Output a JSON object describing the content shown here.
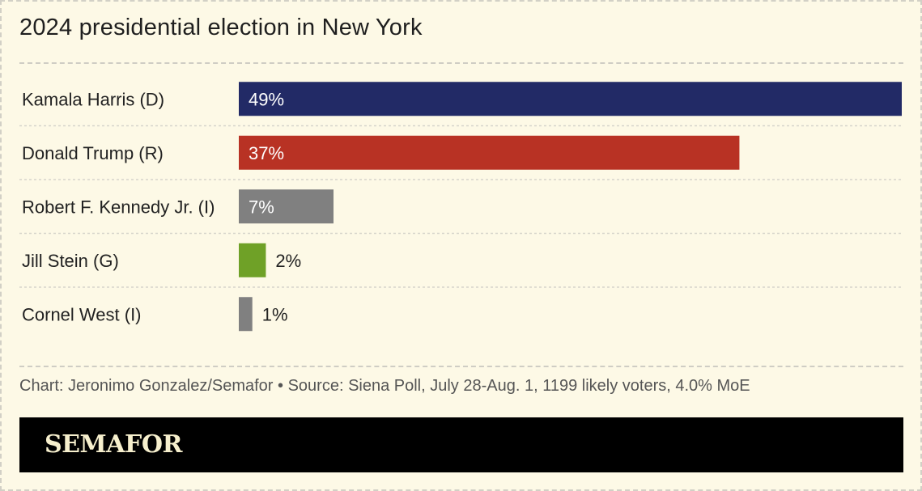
{
  "header": {
    "title": "2024 presidential election in New York"
  },
  "chart_data": {
    "type": "bar",
    "orientation": "horizontal",
    "title": "2024 presidential election in New York",
    "xlim": [
      0,
      49
    ],
    "categories": [
      "Kamala Harris (D)",
      "Donald Trump (R)",
      "Robert F. Kennedy Jr. (I)",
      "Jill Stein (G)",
      "Cornel West (I)"
    ],
    "values": [
      49,
      37,
      7,
      2,
      1
    ],
    "value_labels": [
      "49%",
      "37%",
      "7%",
      "2%",
      "1%"
    ],
    "colors": [
      "#222a66",
      "#b83224",
      "#808080",
      "#6fa127",
      "#808080"
    ],
    "grid": "dashed row separators"
  },
  "footer": {
    "credit": "Chart: Jeronimo Gonzalez/Semafor • Source: Siena Poll, July 28-Aug. 1, 1199 likely voters, 4.0% MoE",
    "brand": "SEMAFOR"
  }
}
